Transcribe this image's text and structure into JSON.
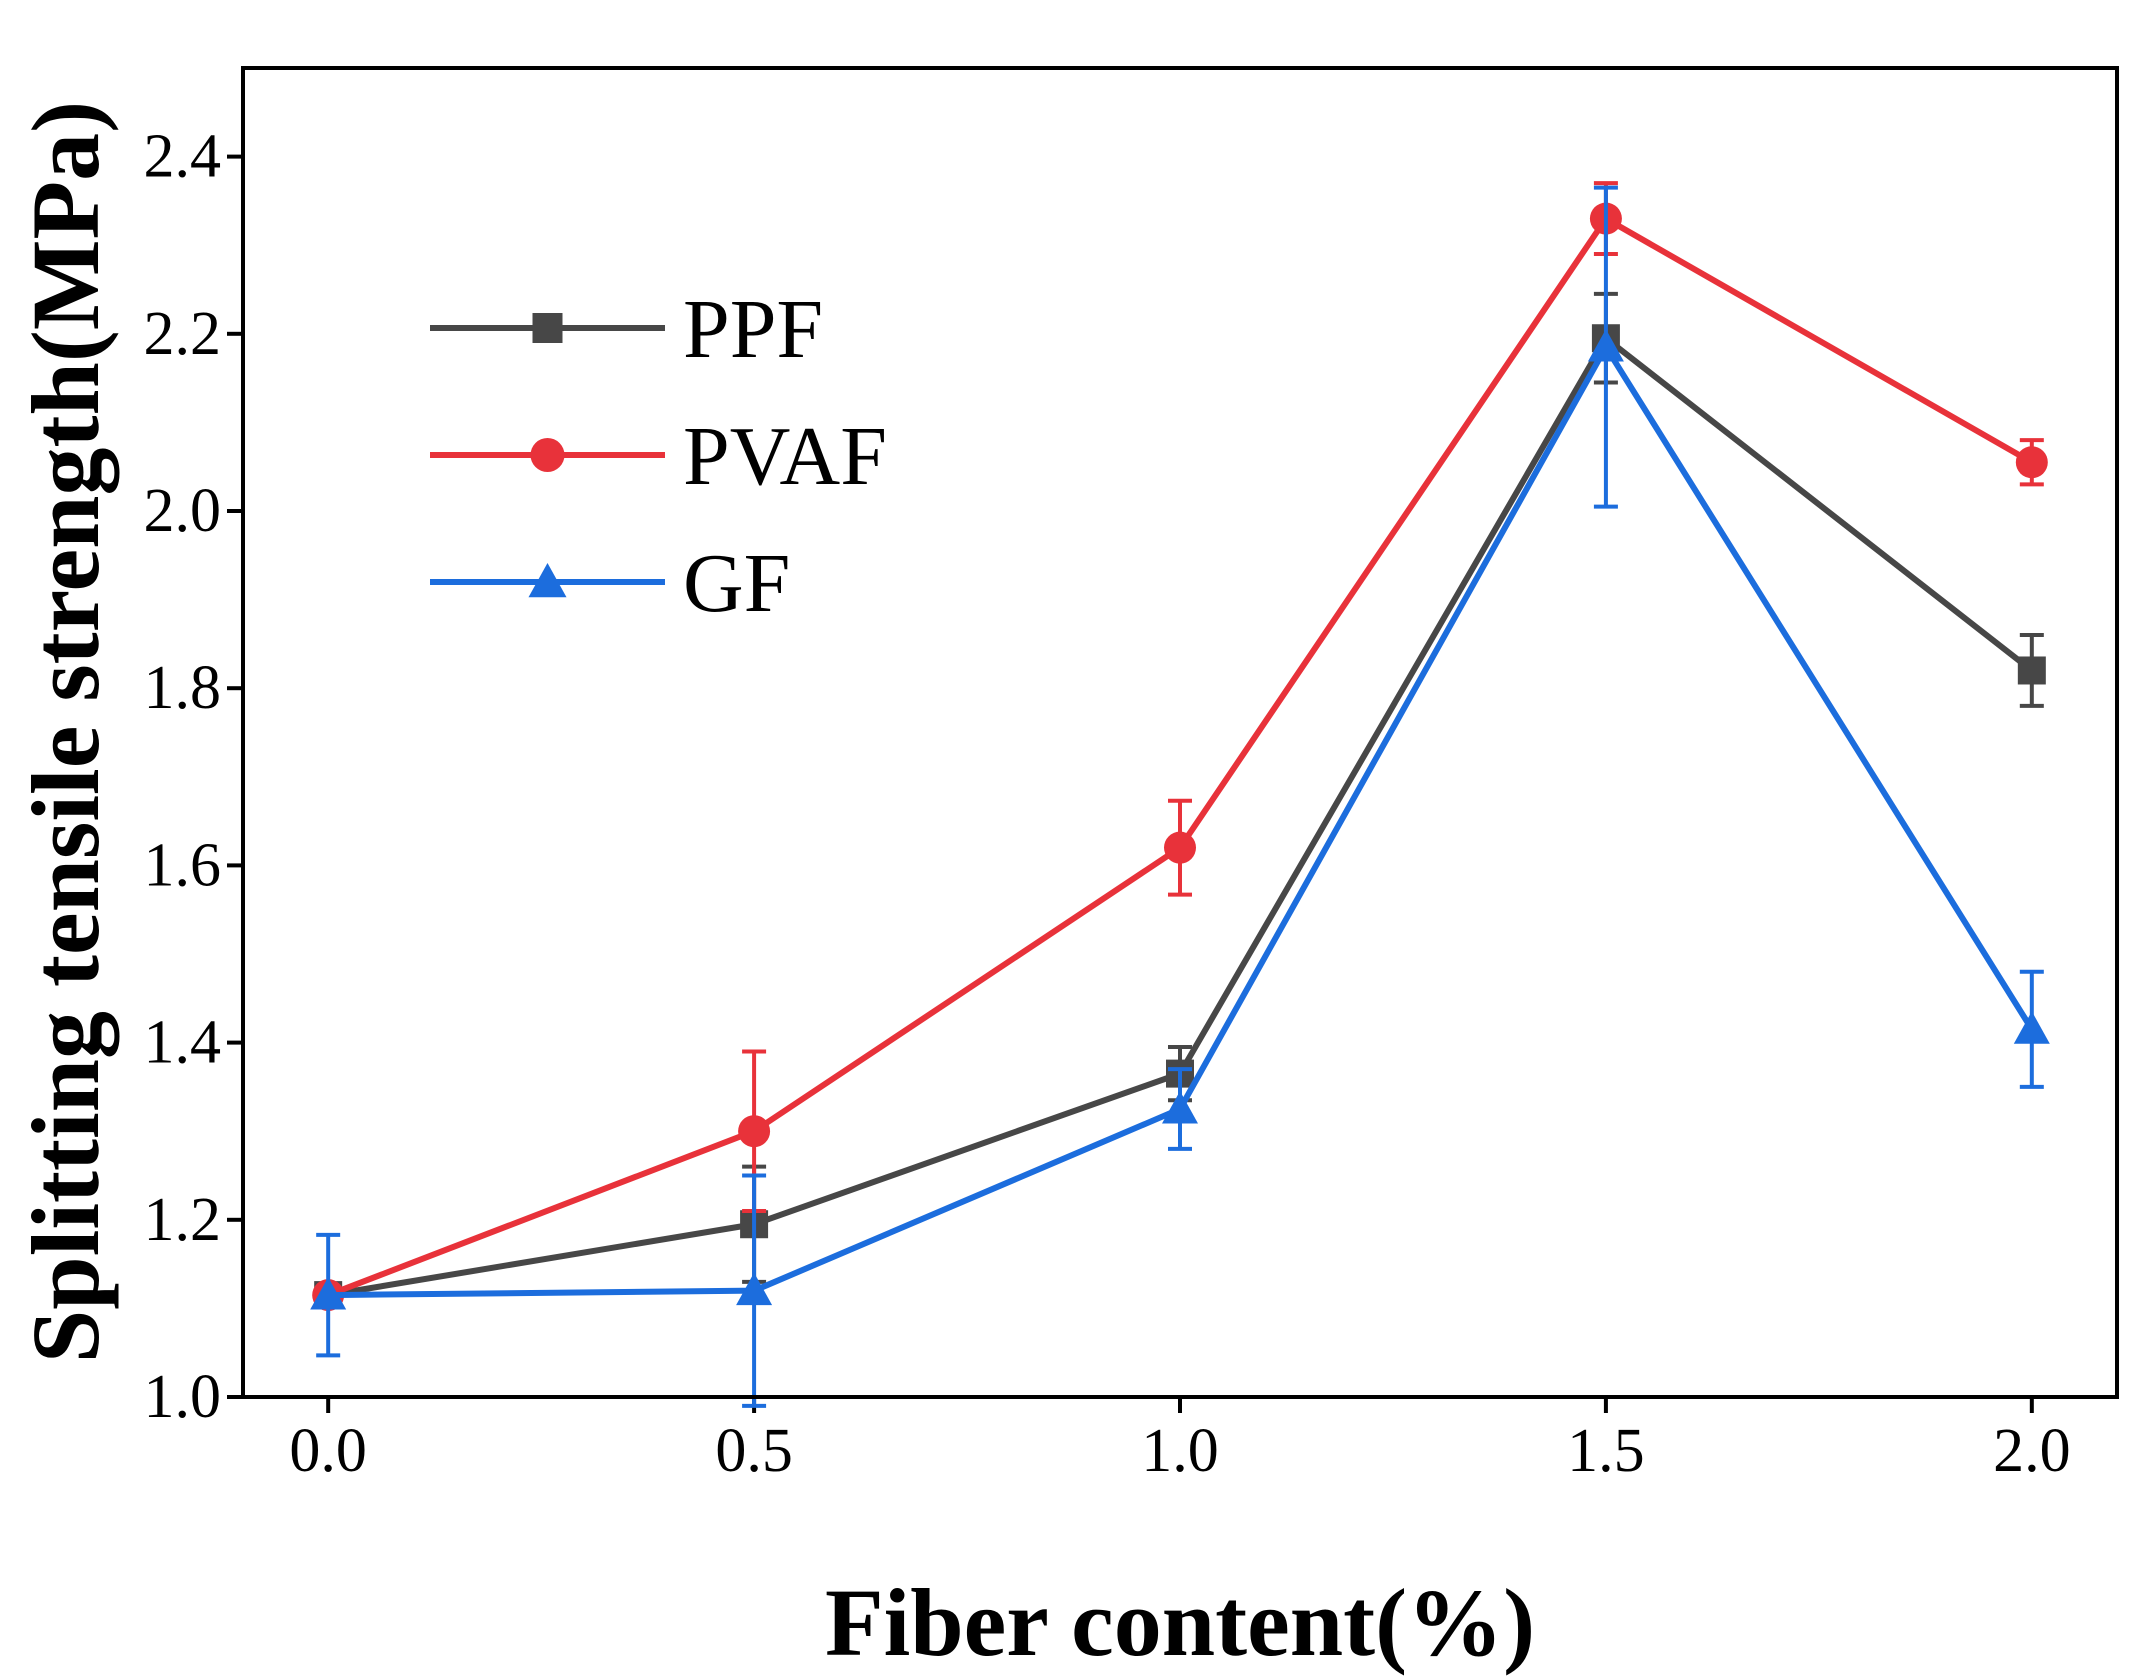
{
  "chart_data": {
    "type": "line",
    "title": "",
    "xlabel": "Fiber content(%)",
    "ylabel": "Splitting tensile strength(MPa)",
    "x": [
      0.0,
      0.5,
      1.0,
      1.5,
      2.0
    ],
    "xlim": [
      -0.1,
      2.1
    ],
    "ylim": [
      1.0,
      2.5
    ],
    "xticks": [
      "0.0",
      "0.5",
      "1.0",
      "1.5",
      "2.0"
    ],
    "yticks": [
      "1.0",
      "1.2",
      "1.4",
      "1.6",
      "1.8",
      "2.0",
      "2.2",
      "2.4"
    ],
    "legend_position": "upper-left",
    "series": [
      {
        "name": "PPF",
        "marker": "square",
        "color": "#474747",
        "values": [
          1.115,
          1.195,
          1.365,
          2.195,
          1.82
        ],
        "errors": [
          0.0,
          0.065,
          0.03,
          0.05,
          0.04
        ]
      },
      {
        "name": "PVAF",
        "marker": "circle",
        "color": "#e8323a",
        "values": [
          1.115,
          1.3,
          1.62,
          2.33,
          2.055
        ],
        "errors": [
          0.0,
          0.09,
          0.053,
          0.04,
          0.025
        ]
      },
      {
        "name": "GF",
        "marker": "triangle",
        "color": "#1c6ddd",
        "values": [
          1.115,
          1.12,
          1.325,
          2.185,
          1.415
        ],
        "errors": [
          0.068,
          0.13,
          0.045,
          0.18,
          0.065
        ]
      }
    ]
  }
}
